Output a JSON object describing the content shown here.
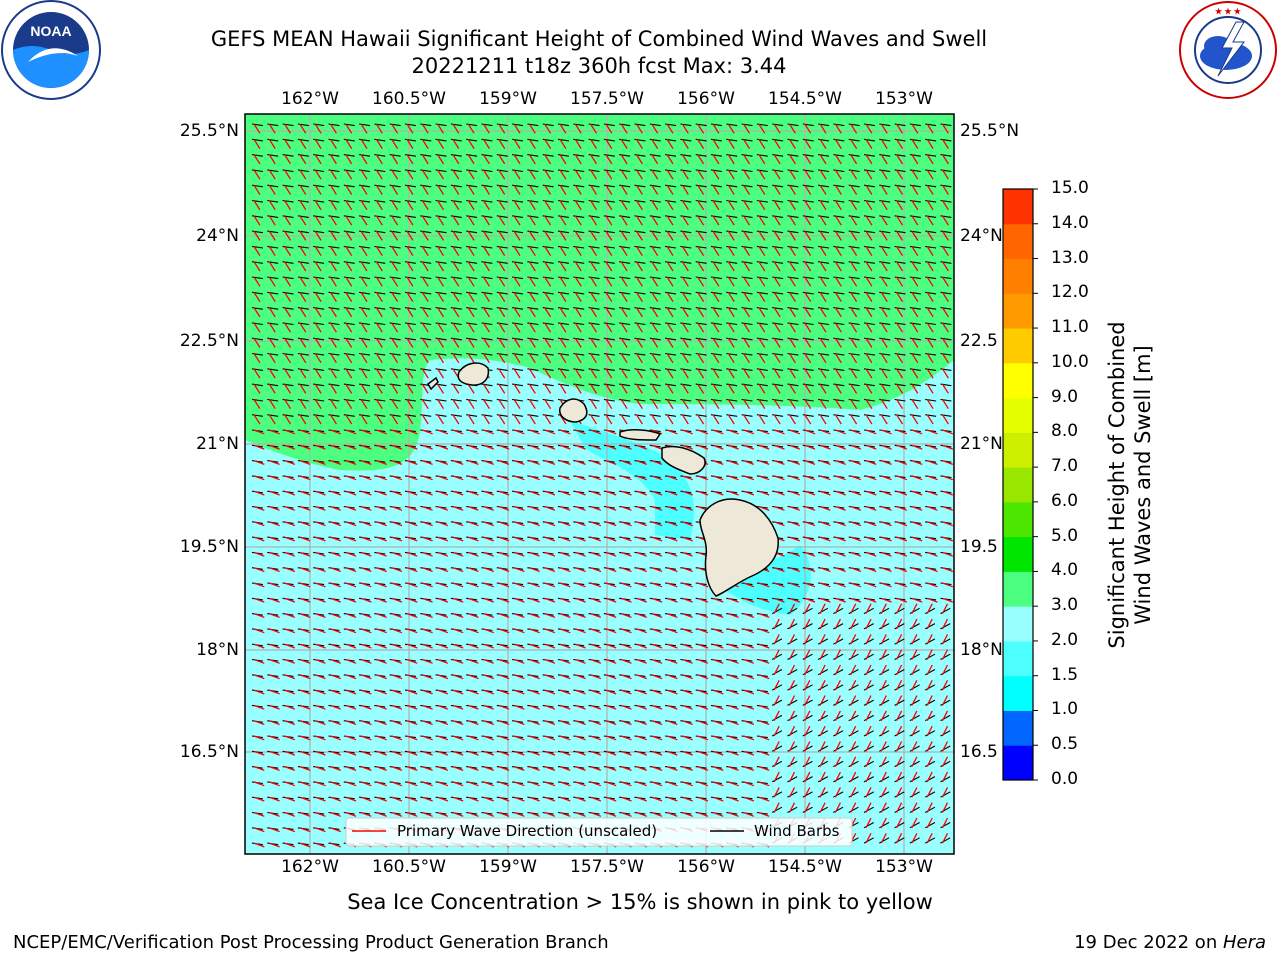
{
  "header": {
    "title_line1": "GEFS MEAN Hawaii Significant Height of Combined Wind Waves and Swell",
    "title_line2": "20221211 t18z 360h fcst   Max: 3.44"
  },
  "logos": {
    "left": {
      "name": "noaa-logo",
      "text": "NOAA",
      "ring_text": "NATIONAL OCEANIC AND ATMOSPHERIC ADMINISTRATION · U.S. DEPARTMENT OF COMMERCE"
    },
    "right": {
      "name": "nws-logo",
      "ring_text": "NATIONAL WEATHER SERVICE"
    }
  },
  "map": {
    "lon_ticks": [
      "162°W",
      "160.5°W",
      "159°W",
      "157.5°W",
      "156°W",
      "154.5°W",
      "153°W"
    ],
    "lat_ticks_left": [
      "25.5°N",
      "24°N",
      "22.5°N",
      "21°N",
      "19.5°N",
      "18°N",
      "16.5°N"
    ],
    "lat_ticks_right": [
      "25.5°N",
      "24°N",
      "22.5",
      "21°N",
      "19.5",
      "18°N",
      "16.5"
    ],
    "legend": {
      "wave_dir": "Primary Wave Direction (unscaled)",
      "wind_barbs": "Wind Barbs"
    },
    "ocean_color_low": "#99ffff",
    "ocean_color_mid": "#4dffff",
    "ocean_color_high": "#4dff80",
    "land_color": "#ede8d8",
    "wave_arrow_color": "#ff0000",
    "barb_color": "#000000"
  },
  "colorbar": {
    "label_line1": "Significant Height of Combined",
    "label_line2": "Wind Waves and Swell [m]",
    "ticks": [
      "0.0",
      "0.5",
      "1.0",
      "1.5",
      "2.0",
      "3.0",
      "4.0",
      "5.0",
      "6.0",
      "7.0",
      "8.0",
      "9.0",
      "10.0",
      "11.0",
      "12.0",
      "13.0",
      "14.0",
      "15.0"
    ],
    "colors": [
      "#0000ff",
      "#0066ff",
      "#00ffff",
      "#4dffff",
      "#99ffff",
      "#4dff80",
      "#00e600",
      "#4de600",
      "#99e600",
      "#ccf000",
      "#e6ff00",
      "#ffff00",
      "#ffcc00",
      "#ff9900",
      "#ff8000",
      "#ff6600",
      "#ff3300"
    ]
  },
  "notes": {
    "sea_ice": "Sea Ice Concentration > 15% is shown in pink to yellow"
  },
  "footer": {
    "left": "NCEP/EMC/Verification Post Processing Product Generation Branch",
    "right_prefix": "19 Dec 2022 on ",
    "right_italic": "Hera"
  }
}
